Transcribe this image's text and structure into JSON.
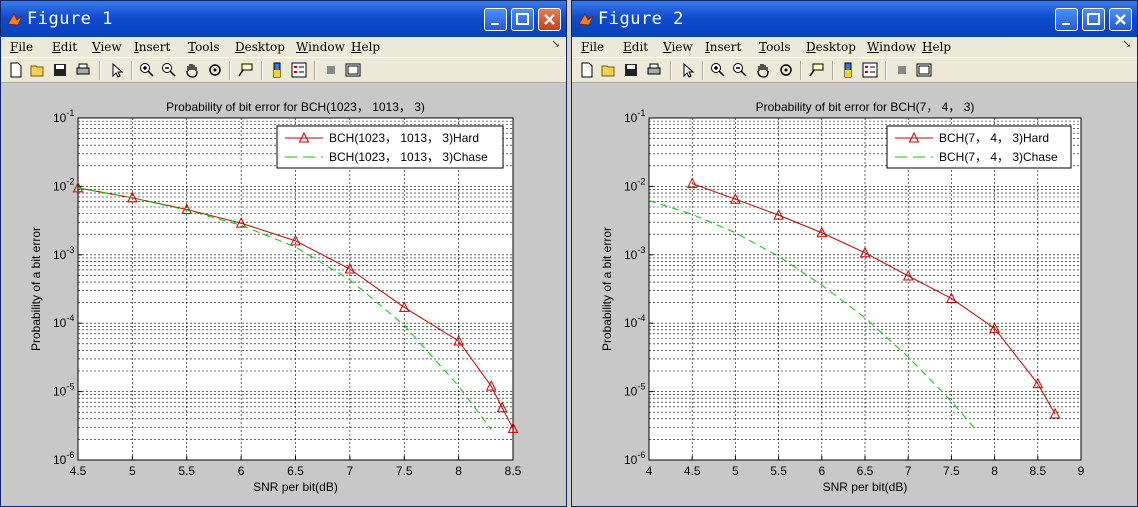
{
  "menu": [
    "File",
    "Edit",
    "View",
    "Insert",
    "Tools",
    "Desktop",
    "Window",
    "Help"
  ],
  "figures": [
    {
      "title": "Figure 1",
      "chart_data": {
        "type": "line",
        "title": "Probability of bit error for BCH(1023， 1013， 3)",
        "xlabel": "SNR per bit(dB)",
        "ylabel": "Probability of a bit error",
        "xlim": [
          4.5,
          8.5
        ],
        "ylim": [
          1e-06,
          0.1
        ],
        "yscale": "log",
        "grid": true,
        "legend_position": "top-right",
        "x_ticks": [
          "4.5",
          "5",
          "5.5",
          "6",
          "6.5",
          "7",
          "7.5",
          "8",
          "8.5"
        ],
        "y_ticks": [
          {
            "base": "10",
            "exp": "-6"
          },
          {
            "base": "10",
            "exp": "-5"
          },
          {
            "base": "10",
            "exp": "-4"
          },
          {
            "base": "10",
            "exp": "-3"
          },
          {
            "base": "10",
            "exp": "-2"
          },
          {
            "base": "10",
            "exp": "-1"
          }
        ],
        "series": [
          {
            "name": "BCH(1023， 1013， 3)Hard",
            "color": "#cc0000",
            "dash": "solid",
            "marker": "triangle",
            "x": [
              4.5,
              5.0,
              5.5,
              6.0,
              6.5,
              7.0,
              7.5,
              8.0,
              8.3,
              8.4,
              8.5
            ],
            "y": [
              0.0095,
              0.0068,
              0.0046,
              0.0029,
              0.0016,
              0.00062,
              0.00017,
              5.5e-05,
              1.2e-05,
              5.8e-06,
              2.9e-06
            ]
          },
          {
            "name": "BCH(1023， 1013， 3)Chase",
            "color": "#00cc00",
            "dash": "dashed",
            "marker": "none",
            "x": [
              4.5,
              5.0,
              5.5,
              6.0,
              6.5,
              7.0,
              7.5,
              8.0,
              8.3
            ],
            "y": [
              0.0095,
              0.0068,
              0.0045,
              0.0027,
              0.0013,
              0.00043,
              9.3e-05,
              1.2e-05,
              2.8e-06
            ]
          }
        ]
      }
    },
    {
      "title": "Figure 2",
      "chart_data": {
        "type": "line",
        "title": "Probability of bit error for BCH(7， 4， 3)",
        "xlabel": "SNR per bit(dB)",
        "ylabel": "Probability of a bit error",
        "xlim": [
          4,
          9
        ],
        "ylim": [
          1e-06,
          0.1
        ],
        "yscale": "log",
        "grid": true,
        "legend_position": "top-right",
        "x_ticks": [
          "4",
          "4.5",
          "5",
          "5.5",
          "6",
          "6.5",
          "7",
          "7.5",
          "8",
          "8.5",
          "9"
        ],
        "y_ticks": [
          {
            "base": "10",
            "exp": "-6"
          },
          {
            "base": "10",
            "exp": "-5"
          },
          {
            "base": "10",
            "exp": "-4"
          },
          {
            "base": "10",
            "exp": "-3"
          },
          {
            "base": "10",
            "exp": "-2"
          },
          {
            "base": "10",
            "exp": "-1"
          }
        ],
        "series": [
          {
            "name": "BCH(7， 4， 3)Hard",
            "color": "#cc0000",
            "dash": "solid",
            "marker": "triangle",
            "x": [
              4.5,
              5.0,
              5.5,
              6.0,
              6.5,
              7.0,
              7.5,
              8.0,
              8.5,
              8.7
            ],
            "y": [
              0.011,
              0.0065,
              0.0038,
              0.0021,
              0.00107,
              0.00049,
              0.00023,
              8.4e-05,
              1.3e-05,
              4.7e-06
            ]
          },
          {
            "name": "BCH(7， 4， 3)Chase",
            "color": "#00cc00",
            "dash": "dashed",
            "marker": "none",
            "x": [
              4.0,
              4.5,
              5.0,
              5.5,
              6.0,
              6.5,
              7.0,
              7.5,
              7.8
            ],
            "y": [
              0.0062,
              0.0039,
              0.0021,
              0.00095,
              0.00036,
              0.00012,
              3.2e-05,
              7.2e-06,
              2.6e-06
            ]
          }
        ]
      }
    }
  ]
}
